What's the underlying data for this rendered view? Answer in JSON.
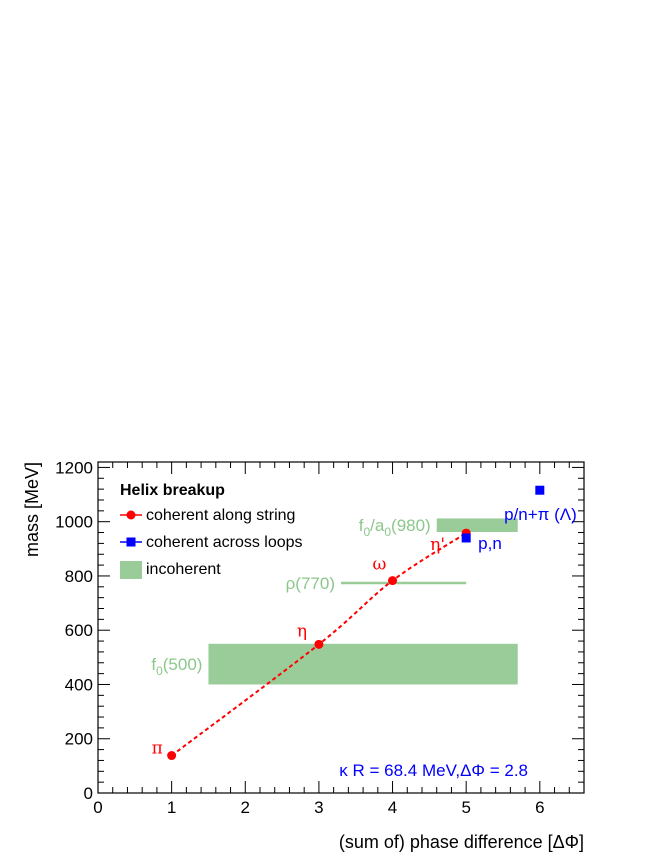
{
  "chart_data": {
    "type": "scatter",
    "xlabel": "(sum of) phase difference [ΔΦ]",
    "ylabel": "mass [MeV]",
    "xlim": [
      0,
      6.6
    ],
    "ylim": [
      0,
      1220
    ],
    "x_ticks": [
      "0",
      "1",
      "2",
      "3",
      "4",
      "5",
      "6"
    ],
    "y_ticks": [
      "0",
      "200",
      "400",
      "600",
      "800",
      "1000",
      "1200"
    ],
    "legend": {
      "placement": "top-left",
      "title": "Helix breakup",
      "entries": [
        {
          "label": "coherent along string",
          "marker": "circle",
          "color": "#ff0000"
        },
        {
          "label": "coherent across loops",
          "marker": "square",
          "color": "#0000ff"
        },
        {
          "label": "incoherent",
          "marker": "box",
          "color": "#99cc99"
        }
      ]
    },
    "series": [
      {
        "name": "coherent along string",
        "color": "#ff0000",
        "points": [
          {
            "x": 1,
            "y": 138,
            "label": "π"
          },
          {
            "x": 3,
            "y": 548,
            "label": "η"
          },
          {
            "x": 4,
            "y": 783,
            "label": "ω"
          },
          {
            "x": 5,
            "y": 958,
            "label": "η'"
          }
        ]
      },
      {
        "name": "coherent across loops",
        "color": "#0000ff",
        "points": [
          {
            "x": 5,
            "y": 940,
            "label": "p,n"
          },
          {
            "x": 6,
            "y": 1116,
            "label": "p/n+π (Λ)"
          }
        ]
      }
    ],
    "bands": [
      {
        "label": "f0(500)",
        "label_main": "f",
        "label_sub": "0",
        "label_rest": "(500)",
        "x": [
          1.5,
          5.7
        ],
        "y": [
          400,
          550
        ],
        "color": "#99cc99"
      },
      {
        "label": "ρ(770)",
        "label_main": "ρ(770)",
        "label_sub": "",
        "label_rest": "",
        "x": [
          3.3,
          5.0
        ],
        "y": [
          770,
          778
        ],
        "color": "#99cc99"
      },
      {
        "label": "f0/a0(980)",
        "label_main": "f",
        "label_sub": "0",
        "label_rest": "/a",
        "label_sub2": "0",
        "label_rest2": "(980)",
        "x": [
          4.6,
          5.7
        ],
        "y": [
          962,
          1012
        ],
        "color": "#99cc99"
      }
    ],
    "annotation": "κ R = 68.4 MeV,ΔΦ = 2.8",
    "grid": false
  }
}
